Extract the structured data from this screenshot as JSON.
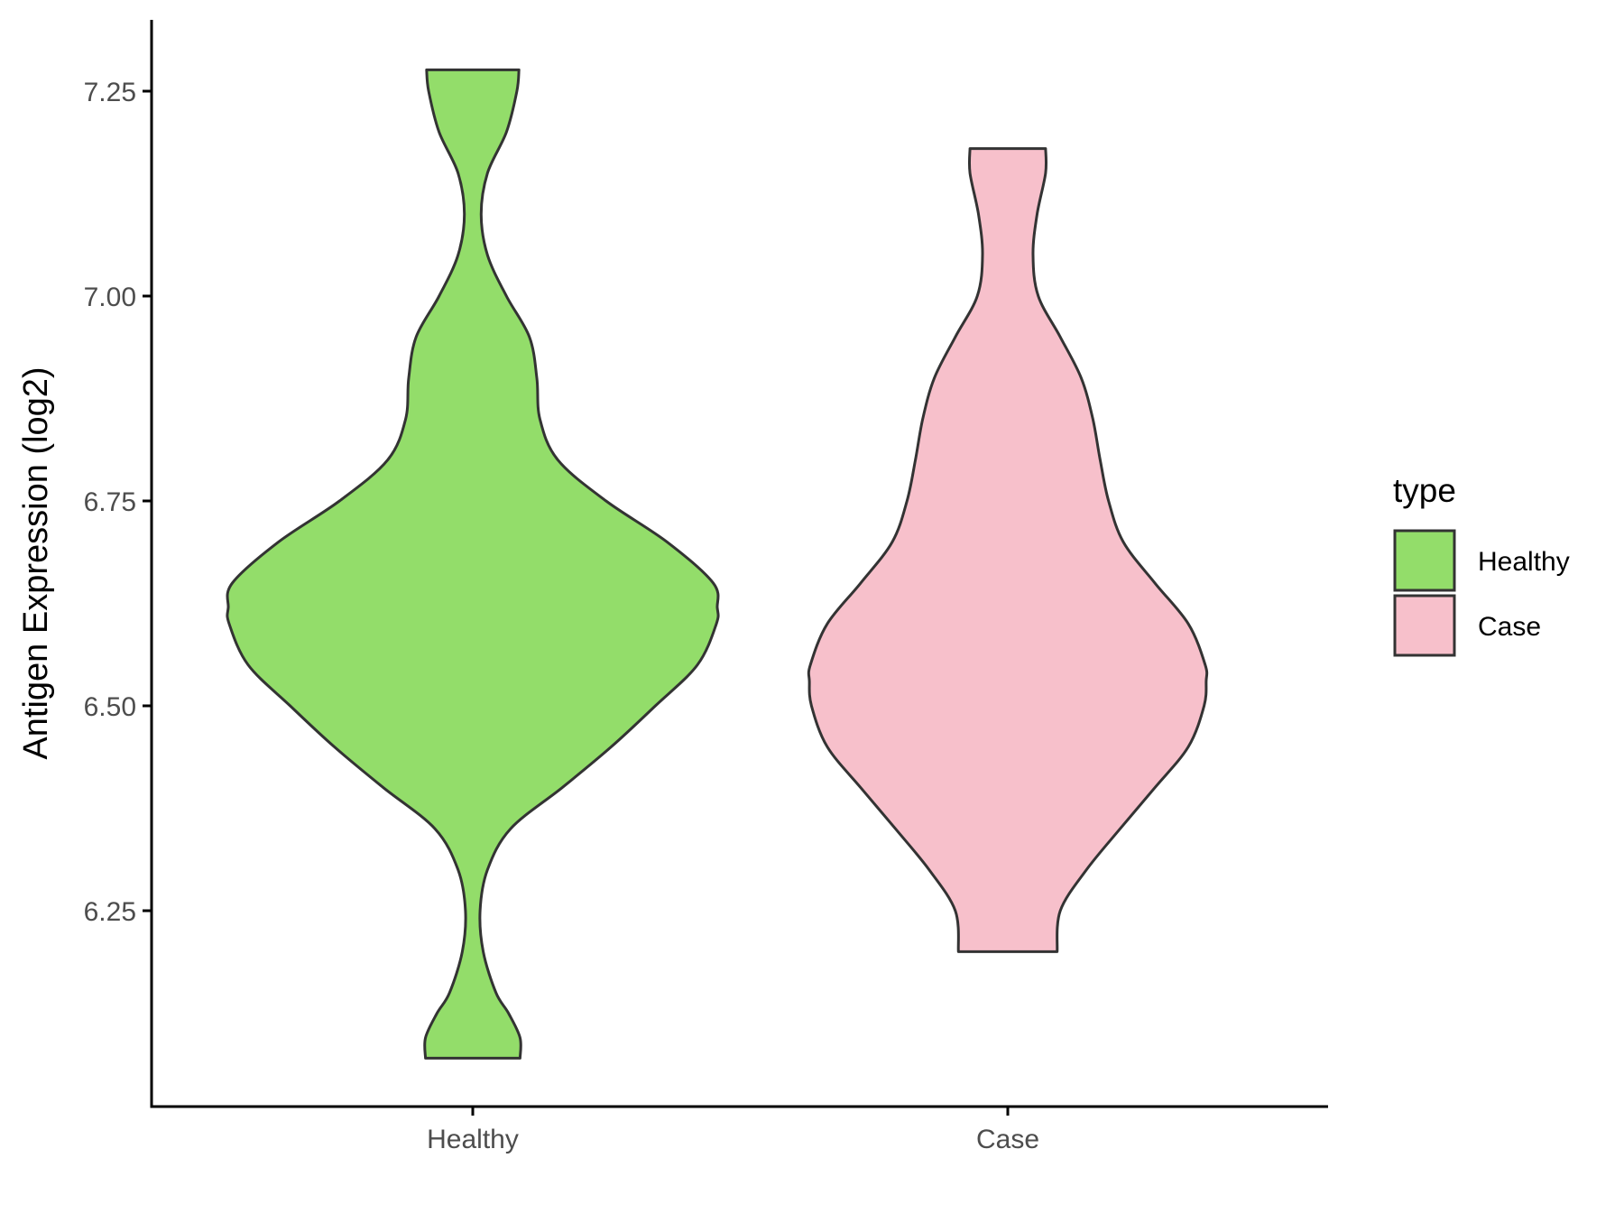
{
  "chart_data": {
    "type": "violin",
    "title": "",
    "xlabel": "",
    "ylabel": "Antigen Expression (log2)",
    "categories": [
      "Healthy",
      "Case"
    ],
    "ylim": [
      6.03,
      7.34
    ],
    "yticks": [
      6.25,
      6.5,
      6.75,
      7.0,
      7.25
    ],
    "ytick_labels": [
      "6.25",
      "6.50",
      "6.75",
      "7.00",
      "7.25"
    ],
    "grid": false,
    "legend": {
      "title": "type",
      "position": "right",
      "entries": [
        {
          "label": "Healthy",
          "color": "#93DD6A"
        },
        {
          "label": "Case",
          "color": "#F7C0CB"
        }
      ]
    },
    "series": [
      {
        "category": "Healthy",
        "color": "#93DD6A",
        "min": 6.07,
        "max": 7.276,
        "density_profile": [
          {
            "y": 6.07,
            "half_width": 0.0433
          },
          {
            "y": 6.095,
            "half_width": 0.0433
          },
          {
            "y": 6.125,
            "half_width": 0.0327
          },
          {
            "y": 6.15,
            "half_width": 0.0212
          },
          {
            "y": 6.2,
            "half_width": 0.0096
          },
          {
            "y": 6.25,
            "half_width": 0.0067
          },
          {
            "y": 6.3,
            "half_width": 0.0135
          },
          {
            "y": 6.35,
            "half_width": 0.0346
          },
          {
            "y": 6.4,
            "half_width": 0.0817
          },
          {
            "y": 6.45,
            "half_width": 0.1269
          },
          {
            "y": 6.5,
            "half_width": 0.1673
          },
          {
            "y": 6.55,
            "half_width": 0.2058
          },
          {
            "y": 6.6,
            "half_width": 0.2231
          },
          {
            "y": 6.62,
            "half_width": 0.224
          },
          {
            "y": 6.65,
            "half_width": 0.2202
          },
          {
            "y": 6.7,
            "half_width": 0.1779
          },
          {
            "y": 6.75,
            "half_width": 0.1221
          },
          {
            "y": 6.8,
            "half_width": 0.0779
          },
          {
            "y": 6.85,
            "half_width": 0.0615
          },
          {
            "y": 6.9,
            "half_width": 0.0587
          },
          {
            "y": 6.95,
            "half_width": 0.0519
          },
          {
            "y": 7.0,
            "half_width": 0.0308
          },
          {
            "y": 7.05,
            "half_width": 0.0135
          },
          {
            "y": 7.1,
            "half_width": 0.0077
          },
          {
            "y": 7.15,
            "half_width": 0.0135
          },
          {
            "y": 7.2,
            "half_width": 0.0308
          },
          {
            "y": 7.25,
            "half_width": 0.0404
          },
          {
            "y": 7.276,
            "half_width": 0.0423
          }
        ]
      },
      {
        "category": "Case",
        "color": "#F7C0CB",
        "min": 6.2,
        "max": 7.18,
        "density_profile": [
          {
            "y": 6.2,
            "half_width": 0.0452
          },
          {
            "y": 6.25,
            "half_width": 0.0481
          },
          {
            "y": 6.3,
            "half_width": 0.0721
          },
          {
            "y": 6.35,
            "half_width": 0.1029
          },
          {
            "y": 6.4,
            "half_width": 0.1346
          },
          {
            "y": 6.45,
            "half_width": 0.1654
          },
          {
            "y": 6.5,
            "half_width": 0.1798
          },
          {
            "y": 6.53,
            "half_width": 0.1817
          },
          {
            "y": 6.55,
            "half_width": 0.1808
          },
          {
            "y": 6.6,
            "half_width": 0.1654
          },
          {
            "y": 6.65,
            "half_width": 0.1346
          },
          {
            "y": 6.7,
            "half_width": 0.1058
          },
          {
            "y": 6.75,
            "half_width": 0.0923
          },
          {
            "y": 6.8,
            "half_width": 0.0846
          },
          {
            "y": 6.85,
            "half_width": 0.0779
          },
          {
            "y": 6.9,
            "half_width": 0.0673
          },
          {
            "y": 6.95,
            "half_width": 0.0481
          },
          {
            "y": 7.0,
            "half_width": 0.0279
          },
          {
            "y": 7.05,
            "half_width": 0.0231
          },
          {
            "y": 7.1,
            "half_width": 0.0269
          },
          {
            "y": 7.15,
            "half_width": 0.0346
          },
          {
            "y": 7.18,
            "half_width": 0.0346
          }
        ]
      }
    ]
  }
}
